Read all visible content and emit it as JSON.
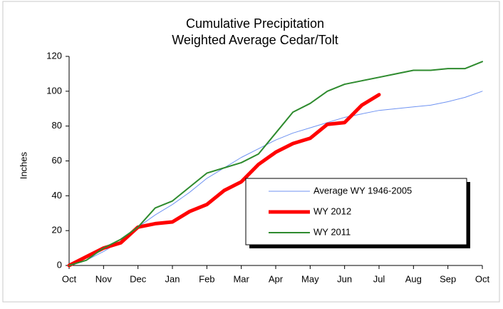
{
  "chart_data": {
    "type": "line",
    "title": "Cumulative Precipitation",
    "subtitle": "Weighted Average Cedar/Tolt",
    "y_label": "Inches",
    "categories": [
      "Oct",
      null,
      "Nov",
      null,
      "Dec",
      null,
      "Jan",
      null,
      "Feb",
      null,
      "Mar",
      null,
      "Apr",
      null,
      "May",
      null,
      "Jun",
      null,
      "Jul",
      null,
      "Aug",
      null,
      "Sep",
      null,
      "Oct"
    ],
    "series": [
      {
        "name": "Average WY 1946-2005",
        "color": "#6f93f2",
        "width": 1,
        "values": [
          0,
          3,
          8,
          14,
          22,
          29,
          35,
          42,
          50,
          56,
          62,
          67,
          72,
          76,
          79,
          82,
          85,
          87,
          89,
          90,
          91,
          92,
          94,
          96.5,
          100
        ]
      },
      {
        "name": "WY 2012",
        "color": "#ff0000",
        "width": 5,
        "values": [
          0,
          5,
          10,
          13,
          22,
          24,
          25,
          31,
          35,
          43,
          48,
          58,
          65,
          70,
          73,
          81,
          82,
          92,
          98,
          null,
          null,
          null,
          null,
          null,
          null
        ]
      },
      {
        "name": "WY 2011",
        "color": "#2e8b2e",
        "width": 2,
        "values": [
          0,
          3,
          10,
          15,
          22,
          33,
          37,
          45,
          53,
          56,
          59,
          64,
          76,
          88,
          93,
          100,
          104,
          106,
          108,
          110,
          112,
          112,
          113,
          113,
          117
        ]
      }
    ],
    "ylim": [
      0,
      120
    ],
    "yticks": [
      0,
      20,
      40,
      60,
      80,
      100,
      120
    ],
    "legend": "lower right"
  }
}
